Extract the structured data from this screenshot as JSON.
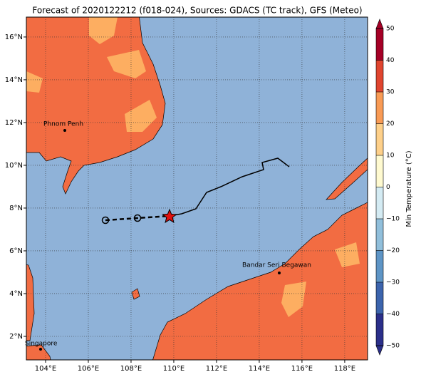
{
  "chart_data": {
    "type": "map",
    "title": "Forecast of 2020122212 (f018-024), Sources: GDACS (TC track), GFS (Meteo)",
    "xlim": [
      103.1,
      119.07
    ],
    "ylim": [
      0.9,
      16.93
    ],
    "xticks": [
      {
        "value": 104,
        "label": "104°E"
      },
      {
        "value": 106,
        "label": "106°E"
      },
      {
        "value": 108,
        "label": "108°E"
      },
      {
        "value": 110,
        "label": "110°E"
      },
      {
        "value": 112,
        "label": "112°E"
      },
      {
        "value": 114,
        "label": "114°E"
      },
      {
        "value": 116,
        "label": "116°E"
      },
      {
        "value": 118,
        "label": "118°E"
      }
    ],
    "yticks": [
      {
        "value": 2,
        "label": "2°N"
      },
      {
        "value": 4,
        "label": "4°N"
      },
      {
        "value": 6,
        "label": "6°N"
      },
      {
        "value": 8,
        "label": "8°N"
      },
      {
        "value": 10,
        "label": "10°N"
      },
      {
        "value": 12,
        "label": "12°N"
      },
      {
        "value": 14,
        "label": "14°N"
      },
      {
        "value": 16,
        "label": "16°N"
      }
    ],
    "grid": true,
    "places": [
      "Phnom Penh",
      "Bandar Seri Begawan",
      "Singapore"
    ],
    "colorbar": {
      "label": "Min Temperature (°C)",
      "lim": [
        -50,
        50
      ],
      "ticks": [
        {
          "value": -50,
          "label": "−50"
        },
        {
          "value": -40,
          "label": "−40"
        },
        {
          "value": -30,
          "label": "−30"
        },
        {
          "value": -20,
          "label": "−20"
        },
        {
          "value": -10,
          "label": "−10"
        },
        0,
        10,
        20,
        30,
        40,
        50
      ],
      "colors": [
        "#2b2f8a",
        "#3c64ad",
        "#5e95c6",
        "#91bfdb",
        "#d4ebf3",
        "#fffad0",
        "#fed08a",
        "#f99b55",
        "#e0452f",
        "#a50026"
      ]
    }
  }
}
